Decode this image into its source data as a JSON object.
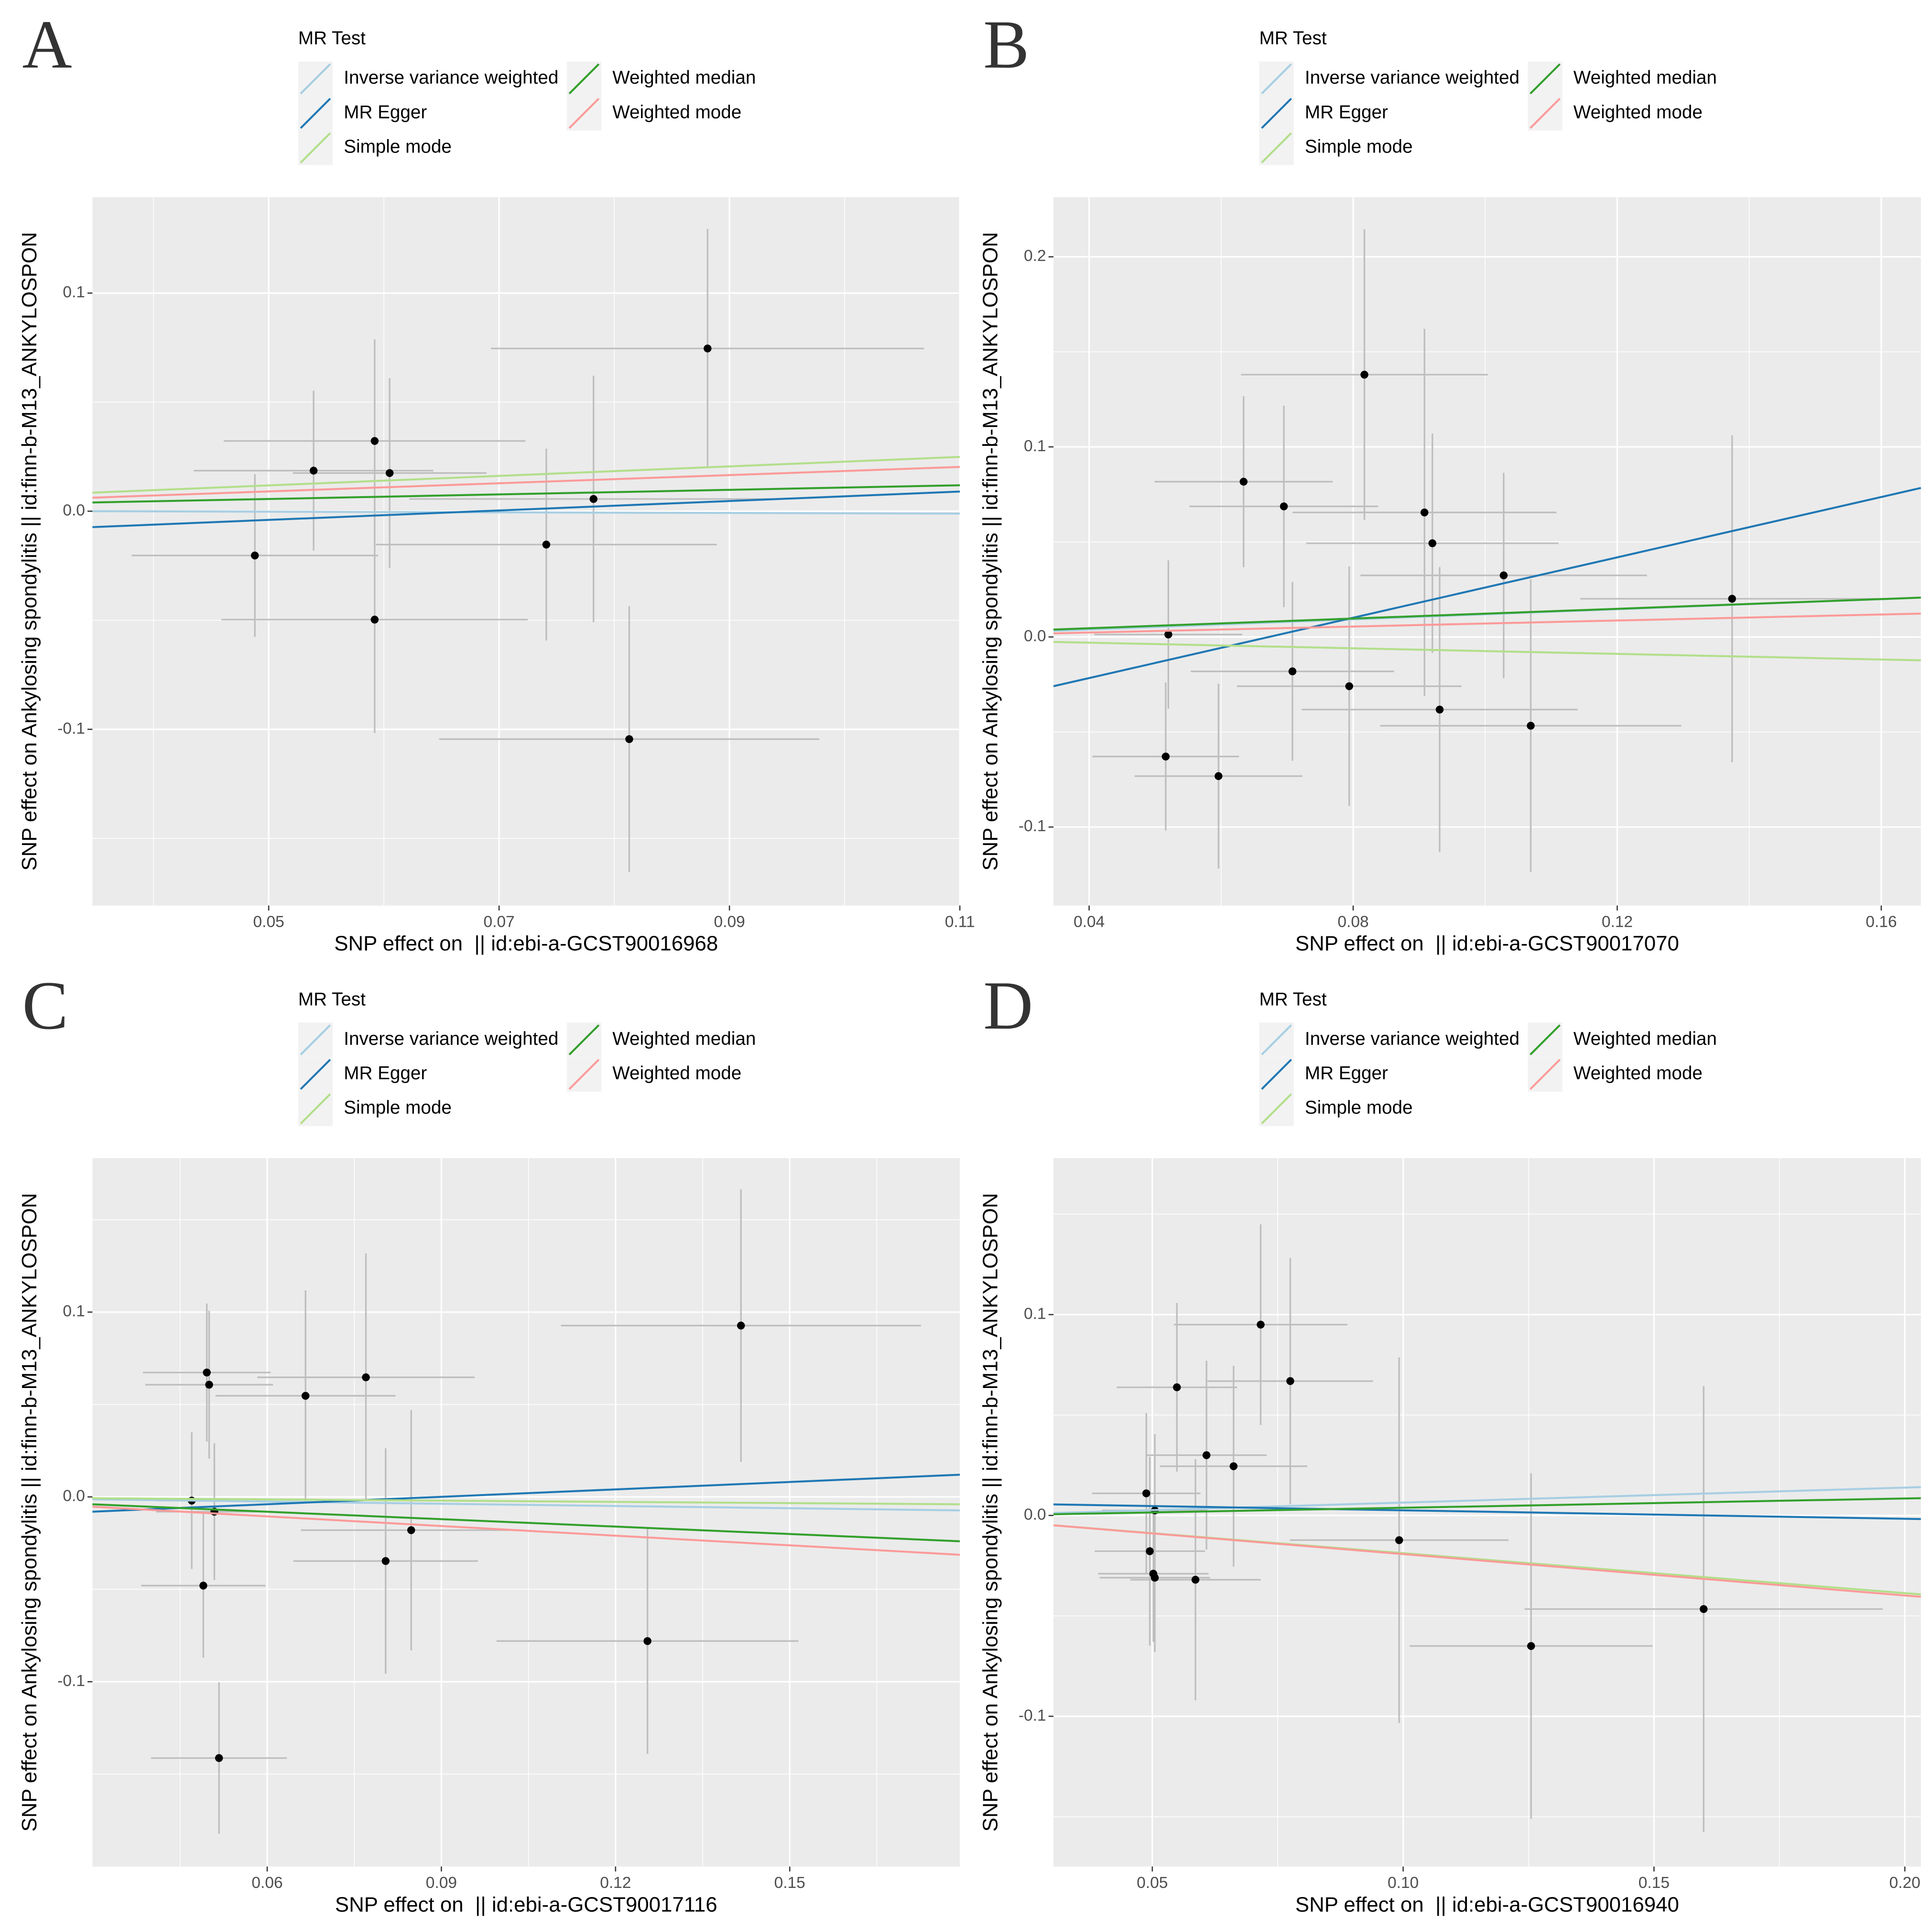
{
  "chart_data": [
    {
      "type": "scatter",
      "label": "A",
      "legend_title": "MR Test",
      "xlabel": "SNP effect on  || id:ebi-a-GCST90016968",
      "ylabel": "SNP effect on Ankylosing spondylitis || id:finn-b-M13_ANKYLOSPON",
      "xlim": [
        0.0347,
        0.11
      ],
      "ylim": [
        -0.1808,
        0.144
      ],
      "xticks": [
        0.05,
        0.07,
        0.09,
        0.11
      ],
      "yticks": [
        -0.1,
        {
          "value": 0,
          "label": "0.0"
        },
        0.1
      ],
      "grid": true,
      "points": {
        "color": "#000000",
        "error_color": "#BEBEBE",
        "x": [
          0.0488,
          0.0539,
          0.0592,
          0.0605,
          0.0592,
          0.0741,
          0.0782,
          0.0881,
          0.0813
        ],
        "values": [
          -0.0203,
          0.0186,
          0.0322,
          0.0175,
          -0.0497,
          -0.0153,
          0.0056,
          0.0746,
          -0.1045
        ],
        "xerr": [
          0.0107,
          0.0104,
          0.0131,
          0.0084,
          0.0133,
          0.0148,
          0.016,
          0.0188,
          0.0165
        ],
        "yerr": [
          0.0373,
          0.0367,
          0.0466,
          0.0435,
          0.052,
          0.044,
          0.0565,
          0.0548,
          0.061
        ]
      },
      "series": [
        {
          "name": "Inverse variance weighted",
          "color": "#A6CEE3",
          "x": [
            0.0347,
            0.11
          ],
          "values": [
            0.0,
            -0.0011
          ]
        },
        {
          "name": "MR Egger",
          "color": "#1F78B4",
          "x": [
            0.0347,
            0.11
          ],
          "values": [
            -0.0073,
            0.009
          ]
        },
        {
          "name": "Simple mode",
          "color": "#B2DF8A",
          "x": [
            0.0347,
            0.11
          ],
          "values": [
            0.0085,
            0.0249
          ]
        },
        {
          "name": "Weighted median",
          "color": "#33A02C",
          "x": [
            0.0347,
            0.11
          ],
          "values": [
            0.004,
            0.0119
          ]
        },
        {
          "name": "Weighted mode",
          "color": "#FB9A99",
          "x": [
            0.0347,
            0.11
          ],
          "values": [
            0.0062,
            0.0203
          ]
        }
      ]
    },
    {
      "type": "scatter",
      "label": "B",
      "legend_title": "MR Test",
      "xlabel": "SNP effect on  || id:ebi-a-GCST90017070",
      "ylabel": "SNP effect on Ankylosing spondylitis || id:finn-b-M13_ANKYLOSPON",
      "xlim": [
        0.0346,
        0.166
      ],
      "ylim": [
        -0.1413,
        0.2314
      ],
      "xticks": [
        0.04,
        0.08,
        0.12,
        0.16
      ],
      "yticks": [
        -0.1,
        {
          "value": 0,
          "label": "0.0"
        },
        0.1,
        0.2
      ],
      "grid": true,
      "points": {
        "color": "#000000",
        "error_color": "#BEBEBE",
        "x": [
          0.052,
          0.0516,
          0.0596,
          0.0634,
          0.0695,
          0.0708,
          0.0794,
          0.0817,
          0.0908,
          0.092,
          0.0931,
          0.1028,
          0.1069,
          0.1374
        ],
        "values": [
          0.0013,
          -0.0629,
          -0.0732,
          0.0817,
          0.0687,
          -0.0181,
          -0.0259,
          0.138,
          0.0655,
          0.0493,
          -0.0382,
          0.0324,
          -0.0467,
          0.0201
        ],
        "xerr": [
          0.0112,
          0.0111,
          0.0127,
          0.0135,
          0.0143,
          0.0154,
          0.017,
          0.0187,
          0.02,
          0.0191,
          0.0209,
          0.0217,
          0.0228,
          0.023
        ],
        "yerr": [
          0.039,
          0.039,
          0.0486,
          0.045,
          0.053,
          0.047,
          0.063,
          0.0765,
          0.0966,
          0.0577,
          0.075,
          0.054,
          0.077,
          0.086
        ]
      },
      "series": [
        {
          "name": "Inverse variance weighted",
          "color": "#A6CEE3",
          "x": [
            0.0346,
            0.166
          ],
          "values": [
            0.0032,
            0.0207
          ]
        },
        {
          "name": "MR Egger",
          "color": "#1F78B4",
          "x": [
            0.0346,
            0.166
          ],
          "values": [
            -0.0259,
            0.0784
          ]
        },
        {
          "name": "Simple mode",
          "color": "#B2DF8A",
          "x": [
            0.0346,
            0.166
          ],
          "values": [
            -0.0026,
            -0.0123
          ]
        },
        {
          "name": "Weighted median",
          "color": "#33A02C",
          "x": [
            0.0346,
            0.166
          ],
          "values": [
            0.0039,
            0.0207
          ]
        },
        {
          "name": "Weighted mode",
          "color": "#FB9A99",
          "x": [
            0.0346,
            0.166
          ],
          "values": [
            0.0019,
            0.0123
          ]
        }
      ]
    },
    {
      "type": "scatter",
      "label": "C",
      "legend_title": "MR Test",
      "xlabel": "SNP effect on  || id:ebi-a-GCST90017116",
      "ylabel": "SNP effect on Ankylosing spondylitis || id:finn-b-M13_ANKYLOSPON",
      "xlim": [
        0.0299,
        0.1793
      ],
      "ylim": [
        -0.2,
        0.1833
      ],
      "xticks": [
        0.06,
        0.09,
        0.12,
        0.15
      ],
      "yticks": [
        -0.1,
        {
          "value": 0,
          "label": "0.0"
        },
        0.1
      ],
      "grid": true,
      "points": {
        "color": "#000000",
        "error_color": "#BEBEBE",
        "x": [
          0.047,
          0.049,
          0.0496,
          0.05,
          0.0509,
          0.0517,
          0.0666,
          0.077,
          0.0804,
          0.0848,
          0.1255,
          0.1416
        ],
        "values": [
          -0.002,
          -0.048,
          0.0673,
          0.0607,
          -0.008,
          -0.1413,
          0.0547,
          0.0647,
          -0.0347,
          -0.018,
          -0.078,
          0.0927
        ],
        "xerr": [
          0.006,
          0.0107,
          0.011,
          0.011,
          0.01,
          0.0117,
          0.0155,
          0.0187,
          0.0159,
          0.019,
          0.026,
          0.031
        ],
        "yerr": [
          0.037,
          0.039,
          0.0373,
          0.04,
          0.037,
          0.041,
          0.057,
          0.067,
          0.061,
          0.065,
          0.061,
          0.0737
        ]
      },
      "series": [
        {
          "name": "Inverse variance weighted",
          "color": "#A6CEE3",
          "x": [
            0.0299,
            0.1793
          ],
          "values": [
            -0.0013,
            -0.0073
          ]
        },
        {
          "name": "MR Egger",
          "color": "#1F78B4",
          "x": [
            0.0299,
            0.1793
          ],
          "values": [
            -0.008,
            0.012
          ]
        },
        {
          "name": "Simple mode",
          "color": "#B2DF8A",
          "x": [
            0.0299,
            0.1793
          ],
          "values": [
            -0.0007,
            -0.004
          ]
        },
        {
          "name": "Weighted median",
          "color": "#33A02C",
          "x": [
            0.0299,
            0.1793
          ],
          "values": [
            -0.004,
            -0.024
          ]
        },
        {
          "name": "Weighted mode",
          "color": "#FB9A99",
          "x": [
            0.0299,
            0.1793
          ],
          "values": [
            -0.0053,
            -0.0313
          ]
        }
      ]
    },
    {
      "type": "scatter",
      "label": "D",
      "legend_title": "MR Test",
      "xlabel": "SNP effect on  || id:ebi-a-GCST90016940",
      "ylabel": "SNP effect on Ankylosing spondylitis || id:finn-b-M13_ANKYLOSPON",
      "xlim": [
        0.0303,
        0.2032
      ],
      "ylim": [
        -0.1748,
        0.1779
      ],
      "xticks": [
        0.05,
        {
          "value": 0.1,
          "label": "0.10"
        },
        0.15,
        {
          "value": 0.2,
          "label": "0.20"
        }
      ],
      "yticks": [
        -0.1,
        {
          "value": 0,
          "label": "0.0"
        },
        0.1
      ],
      "grid": true,
      "points": {
        "color": "#000000",
        "error_color": "#BEBEBE",
        "x": [
          0.0488,
          0.0495,
          0.0502,
          0.0505,
          0.0505,
          0.0549,
          0.0608,
          0.0586,
          0.0662,
          0.0716,
          0.0775,
          0.0992,
          0.1255,
          0.1599
        ],
        "values": [
          0.011,
          -0.0178,
          -0.029,
          -0.031,
          0.0025,
          0.0638,
          0.03,
          -0.032,
          0.0245,
          0.095,
          0.0669,
          -0.0123,
          -0.065,
          -0.0466
        ],
        "xerr": [
          0.0108,
          0.011,
          0.011,
          0.011,
          0.0105,
          0.012,
          0.012,
          0.013,
          0.0147,
          0.0173,
          0.0165,
          0.0218,
          0.0242,
          0.0357
        ],
        "yerr": [
          0.04,
          0.047,
          0.034,
          0.037,
          0.038,
          0.042,
          0.047,
          0.06,
          0.05,
          0.05,
          0.0613,
          0.091,
          0.086,
          0.111
        ]
      },
      "series": [
        {
          "name": "Inverse variance weighted",
          "color": "#A6CEE3",
          "x": [
            0.0303,
            0.2032
          ],
          "values": [
            0.0012,
            0.0141
          ]
        },
        {
          "name": "MR Egger",
          "color": "#1F78B4",
          "x": [
            0.0303,
            0.2032
          ],
          "values": [
            0.0055,
            -0.0018
          ]
        },
        {
          "name": "Simple mode",
          "color": "#B2DF8A",
          "x": [
            0.0303,
            0.2032
          ],
          "values": [
            -0.0049,
            -0.0393
          ]
        },
        {
          "name": "Weighted median",
          "color": "#33A02C",
          "x": [
            0.0303,
            0.2032
          ],
          "values": [
            0.0006,
            0.0086
          ]
        },
        {
          "name": "Weighted mode",
          "color": "#FB9A99",
          "x": [
            0.0303,
            0.2032
          ],
          "values": [
            -0.0049,
            -0.0405
          ]
        }
      ]
    }
  ]
}
